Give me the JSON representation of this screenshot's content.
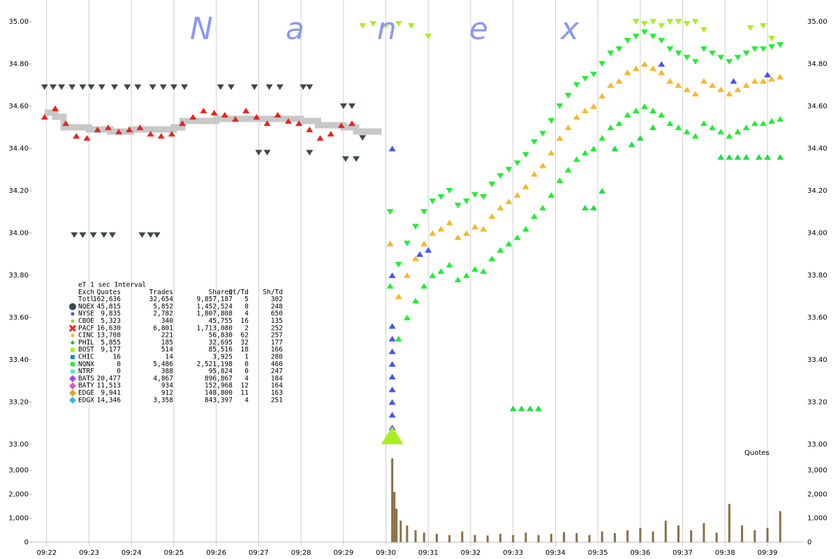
{
  "chart_data": {
    "type": "scatter",
    "title": "Nanex",
    "volume_label": "Quotes",
    "grid": true,
    "xlim": [
      21.64,
      39.84
    ],
    "xticks": [
      {
        "value": 22,
        "label": "09:22"
      },
      {
        "value": 23,
        "label": "09:23"
      },
      {
        "value": 24,
        "label": "09:24"
      },
      {
        "value": 25,
        "label": "09:25"
      },
      {
        "value": 26,
        "label": "09:26"
      },
      {
        "value": 27,
        "label": "09:27"
      },
      {
        "value": 28,
        "label": "09:28"
      },
      {
        "value": 29,
        "label": "09:29"
      },
      {
        "value": 30,
        "label": "09:30"
      },
      {
        "value": 31,
        "label": "09:31"
      },
      {
        "value": 32,
        "label": "09:32"
      },
      {
        "value": 33,
        "label": "09:33"
      },
      {
        "value": 34,
        "label": "09:34"
      },
      {
        "value": 35,
        "label": "09:35"
      },
      {
        "value": 36,
        "label": "09:36"
      },
      {
        "value": 37,
        "label": "09:37"
      },
      {
        "value": 38,
        "label": "09:38"
      },
      {
        "value": 39,
        "label": "09:39"
      }
    ],
    "ylim": [
      32.92,
      35.03
    ],
    "yticks": [
      {
        "value": 33,
        "label": "33.00"
      },
      {
        "value": 33.2,
        "label": "33.20"
      },
      {
        "value": 33.4,
        "label": "33.40"
      },
      {
        "value": 33.6,
        "label": "33.60"
      },
      {
        "value": 33.8,
        "label": "33.80"
      },
      {
        "value": 34,
        "label": "34.00"
      },
      {
        "value": 34.2,
        "label": "34.20"
      },
      {
        "value": 34.4,
        "label": "34.40"
      },
      {
        "value": 34.6,
        "label": "34.60"
      },
      {
        "value": 34.8,
        "label": "34.80"
      },
      {
        "value": 35,
        "label": "35.00"
      }
    ],
    "y2lim": [
      0,
      3500
    ],
    "y2ticks": [
      0,
      {
        "value": 1000,
        "label": "1,000"
      },
      {
        "value": 2000,
        "label": "2,000"
      },
      {
        "value": 3000,
        "label": "3,000"
      }
    ],
    "series": [
      {
        "color": "#c8c8c8",
        "marker": "band",
        "x": [
          21.95,
          22.2,
          22.4,
          23.0,
          23.5,
          24.0,
          25.0,
          25.2,
          26.0,
          27.0,
          28.0,
          28.4,
          29.0,
          29.3,
          29.9
        ],
        "values": [
          34.57,
          34.55,
          34.5,
          34.49,
          34.48,
          34.49,
          34.5,
          34.53,
          34.54,
          34.54,
          34.53,
          34.51,
          34.5,
          34.48,
          34.48
        ]
      },
      {
        "color": "#3c4a4a",
        "marker": "down",
        "x": [
          21.95,
          22.15,
          22.35,
          22.6,
          22.85,
          23.05,
          23.3,
          23.6,
          23.9,
          24.15,
          24.5,
          24.75,
          25.0,
          25.25,
          26.1,
          26.35,
          26.9,
          27.25,
          27.5,
          28.05,
          28.2,
          29.0,
          29.2,
          22.65,
          22.85,
          23.1,
          23.35,
          23.55,
          24.25,
          24.45,
          24.6,
          27.0,
          27.2,
          28.2,
          29.05,
          29.3,
          29.45
        ],
        "values": [
          34.69,
          34.69,
          34.69,
          34.69,
          34.69,
          34.69,
          34.69,
          34.69,
          34.69,
          34.69,
          34.69,
          34.69,
          34.69,
          34.69,
          34.69,
          34.69,
          34.69,
          34.69,
          34.69,
          34.69,
          34.69,
          34.6,
          34.6,
          33.99,
          33.99,
          33.99,
          33.99,
          33.99,
          33.99,
          33.99,
          33.99,
          34.38,
          34.38,
          34.38,
          34.35,
          34.35,
          34.45
        ]
      },
      {
        "color": "#e8231c",
        "marker": "up",
        "x": [
          21.95,
          22.2,
          22.45,
          22.7,
          22.95,
          23.2,
          23.45,
          23.7,
          23.95,
          24.2,
          24.45,
          24.7,
          24.95,
          25.2,
          25.45,
          25.7,
          25.95,
          26.2,
          26.45,
          26.7,
          26.95,
          27.2,
          27.45,
          27.7,
          27.95,
          28.2,
          28.45,
          28.7,
          28.95,
          29.2
        ],
        "values": [
          34.55,
          34.59,
          34.52,
          34.46,
          34.45,
          34.49,
          34.5,
          34.48,
          34.49,
          34.5,
          34.47,
          34.46,
          34.47,
          34.52,
          34.55,
          34.58,
          34.57,
          34.56,
          34.54,
          34.58,
          34.55,
          34.52,
          34.56,
          34.53,
          34.52,
          34.49,
          34.45,
          34.47,
          34.51,
          34.52
        ]
      },
      {
        "color": "#22ee33",
        "marker": "down",
        "x": [
          30.1,
          30.3,
          30.5,
          30.7,
          30.9,
          31.1,
          31.3,
          31.5,
          31.7,
          31.9,
          32.1,
          32.3,
          32.5,
          32.7,
          32.9,
          33.1,
          33.3,
          33.5,
          33.7,
          33.9,
          34.1,
          34.3,
          34.5,
          34.7,
          34.9,
          35.1,
          35.3,
          35.5,
          35.7,
          35.9,
          36.1,
          36.3,
          36.5,
          36.7,
          36.9,
          37.1,
          37.3,
          37.5,
          37.7,
          37.9,
          38.1,
          38.3,
          38.5,
          38.7,
          38.9,
          39.1,
          39.3
        ],
        "values": [
          34.1,
          33.85,
          33.95,
          34.03,
          34.1,
          34.15,
          34.17,
          34.2,
          34.13,
          34.15,
          34.18,
          34.17,
          34.23,
          34.27,
          34.3,
          34.33,
          34.37,
          34.43,
          34.47,
          34.53,
          34.6,
          34.65,
          34.7,
          34.73,
          34.75,
          34.8,
          34.85,
          34.87,
          34.91,
          34.93,
          34.95,
          34.93,
          34.91,
          34.87,
          34.85,
          34.83,
          34.81,
          34.87,
          34.85,
          34.83,
          34.81,
          34.83,
          34.85,
          34.87,
          34.87,
          34.88,
          34.89
        ]
      },
      {
        "color": "#22ee33",
        "marker": "up",
        "x": [
          30.1,
          30.3,
          30.5,
          30.7,
          30.9,
          31.1,
          31.3,
          31.5,
          31.7,
          31.9,
          32.1,
          32.3,
          32.5,
          32.7,
          32.9,
          33.1,
          33.3,
          33.5,
          33.7,
          33.9,
          34.1,
          34.3,
          34.5,
          34.7,
          34.9,
          35.1,
          35.3,
          35.5,
          35.7,
          35.9,
          36.1,
          36.3,
          36.5,
          36.7,
          36.9,
          37.1,
          37.3,
          37.5,
          37.7,
          37.9,
          38.1,
          38.3,
          38.5,
          38.7,
          38.9,
          39.1,
          39.3
        ],
        "values": [
          33.75,
          33.5,
          33.6,
          33.68,
          33.75,
          33.8,
          33.82,
          33.85,
          33.78,
          33.8,
          33.83,
          33.82,
          33.88,
          33.92,
          33.95,
          33.98,
          34.02,
          34.08,
          34.12,
          34.18,
          34.25,
          34.3,
          34.35,
          34.38,
          34.4,
          34.45,
          34.5,
          34.52,
          34.56,
          34.58,
          34.6,
          34.58,
          34.56,
          34.52,
          34.5,
          34.48,
          34.46,
          34.52,
          34.5,
          34.48,
          34.46,
          34.48,
          34.5,
          34.52,
          34.52,
          34.53,
          34.54
        ]
      },
      {
        "color": "#f5b82a",
        "marker": "up",
        "x": [
          30.1,
          30.3,
          30.5,
          30.7,
          30.9,
          31.1,
          31.3,
          31.5,
          31.7,
          31.9,
          32.1,
          32.3,
          32.5,
          32.7,
          32.9,
          33.1,
          33.3,
          33.5,
          33.7,
          33.9,
          34.1,
          34.3,
          34.5,
          34.7,
          34.9,
          35.1,
          35.3,
          35.5,
          35.7,
          35.9,
          36.1,
          36.3,
          36.5,
          36.7,
          36.9,
          37.1,
          37.3,
          37.5,
          37.7,
          37.9,
          38.1,
          38.3,
          38.5,
          38.7,
          38.9,
          39.1,
          39.3
        ],
        "values": [
          33.95,
          33.7,
          33.8,
          33.88,
          33.95,
          34.0,
          34.02,
          34.05,
          33.98,
          34.0,
          34.03,
          34.02,
          34.08,
          34.12,
          34.15,
          34.18,
          34.22,
          34.28,
          34.32,
          34.38,
          34.45,
          34.5,
          34.55,
          34.58,
          34.6,
          34.65,
          34.7,
          34.72,
          34.76,
          34.78,
          34.8,
          34.78,
          34.76,
          34.72,
          34.7,
          34.68,
          34.66,
          34.72,
          34.7,
          34.68,
          34.66,
          34.68,
          34.7,
          34.72,
          34.72,
          34.73,
          34.74
        ]
      },
      {
        "color": "#aaee22",
        "marker": "down",
        "x": [
          29.45,
          29.7,
          30.0,
          30.3,
          30.6,
          31.0,
          35.9,
          36.1,
          36.3,
          36.5,
          36.7,
          36.9,
          37.1,
          37.3,
          37.5,
          38.6,
          38.9,
          39.1
        ],
        "values": [
          34.98,
          34.99,
          34.98,
          34.99,
          34.98,
          34.93,
          35.0,
          34.99,
          35.0,
          34.98,
          35.0,
          35.0,
          34.99,
          35.0,
          34.96,
          34.97,
          34.98,
          34.92
        ]
      },
      {
        "color": "#22dd44",
        "marker": "up",
        "x": [
          37.9,
          38.1,
          38.3,
          38.5,
          38.8,
          39.0,
          39.3,
          33.0,
          33.2,
          33.4,
          33.6,
          34.7,
          34.9,
          35.1,
          35.4,
          35.8,
          36.0,
          36.3
        ],
        "values": [
          34.36,
          34.36,
          34.36,
          34.36,
          34.36,
          34.36,
          34.36,
          33.17,
          33.17,
          33.17,
          33.17,
          34.12,
          34.12,
          34.2,
          34.4,
          34.42,
          34.45,
          34.5
        ]
      },
      {
        "color": "#4455ee",
        "marker": "up",
        "x": [
          30.15,
          30.15,
          30.15,
          30.15,
          30.15,
          30.15,
          30.15,
          30.15,
          30.15,
          30.15,
          30.15,
          30.15,
          30.8,
          31.0,
          36.5,
          38.2,
          39.0
        ],
        "values": [
          33.02,
          33.08,
          33.14,
          33.2,
          33.26,
          33.32,
          33.38,
          33.44,
          33.5,
          33.56,
          33.8,
          34.4,
          33.9,
          33.92,
          34.8,
          34.72,
          34.75
        ]
      },
      {
        "color": "#aaee22",
        "marker": "big-up",
        "x": [
          30.15
        ],
        "values": [
          33.0
        ]
      }
    ],
    "volume": {
      "color": "#8a7040",
      "axis": "y2",
      "x": [
        30.15,
        30.2,
        30.25,
        30.35,
        30.5,
        30.7,
        30.9,
        31.2,
        31.5,
        31.8,
        32.1,
        32.4,
        32.7,
        33.0,
        33.3,
        33.6,
        33.9,
        34.2,
        34.5,
        34.8,
        35.1,
        35.4,
        35.7,
        36.0,
        36.3,
        36.6,
        36.9,
        37.2,
        37.5,
        37.8,
        38.1,
        38.4,
        38.7,
        39.0,
        39.3
      ],
      "values": [
        3500,
        2100,
        1400,
        900,
        700,
        500,
        400,
        350,
        300,
        450,
        300,
        280,
        350,
        300,
        400,
        300,
        350,
        420,
        380,
        300,
        450,
        380,
        500,
        600,
        450,
        900,
        700,
        500,
        800,
        400,
        1600,
        700,
        500,
        600,
        1300
      ]
    },
    "stats_table": {
      "heading": "eT 1 sec Interval",
      "columns": [
        "Exch",
        "Quotes",
        "Trades",
        "Shares",
        "Qt/Td",
        "Sh/Td"
      ],
      "rows": [
        [
          "Totl",
          "162,636",
          "32,654",
          "9,857,187",
          "5",
          "302"
        ],
        [
          "NQEX",
          "45,815",
          "5,852",
          "1,452,524",
          "8",
          "248"
        ],
        [
          "NYSE",
          "9,835",
          "2,782",
          "1,807,808",
          "4",
          "650"
        ],
        [
          "CBOE",
          "5,323",
          "340",
          "45,755",
          "16",
          "135"
        ],
        [
          "PACF",
          "16,630",
          "6,801",
          "1,713,080",
          "2",
          "252"
        ],
        [
          "CINC",
          "13,708",
          "221",
          "56,830",
          "62",
          "257"
        ],
        [
          "PHIL",
          "5,855",
          "185",
          "32,695",
          "32",
          "177"
        ],
        [
          "BOST",
          "9,177",
          "514",
          "85,516",
          "18",
          "166"
        ],
        [
          "CHIC",
          "16",
          "14",
          "3,925",
          "1",
          "280"
        ],
        [
          "NQNX",
          "0",
          "5,486",
          "2,521,198",
          "0",
          "460"
        ],
        [
          "NTRF",
          "0",
          "388",
          "95,824",
          "0",
          "247"
        ],
        [
          "BATS",
          "20,477",
          "4,867",
          "896,867",
          "4",
          "184"
        ],
        [
          "BATY",
          "11,513",
          "934",
          "152,968",
          "12",
          "164"
        ],
        [
          "EDGE",
          "9,941",
          "912",
          "148,800",
          "11",
          "163"
        ],
        [
          "EDGX",
          "14,346",
          "3,358",
          "843,397",
          "4",
          "251"
        ]
      ],
      "row_colors": [
        null,
        "#3c4a4a",
        "#4455ee",
        "#aacc22",
        "#e8231c",
        "#f5b82a",
        "#22bb44",
        "#aaee22",
        "#2288cc",
        "#22ee33",
        "#55eeaa",
        "#aa44ee",
        "#dd55cc",
        "#e8a020",
        "#33bbdd"
      ],
      "row_shapes": [
        null,
        "circle",
        "dot",
        "dot",
        "cross",
        "dot",
        "dot",
        "square",
        "square",
        "square",
        "square",
        "diamond",
        "diamond",
        "diamond",
        "diamond"
      ]
    }
  }
}
